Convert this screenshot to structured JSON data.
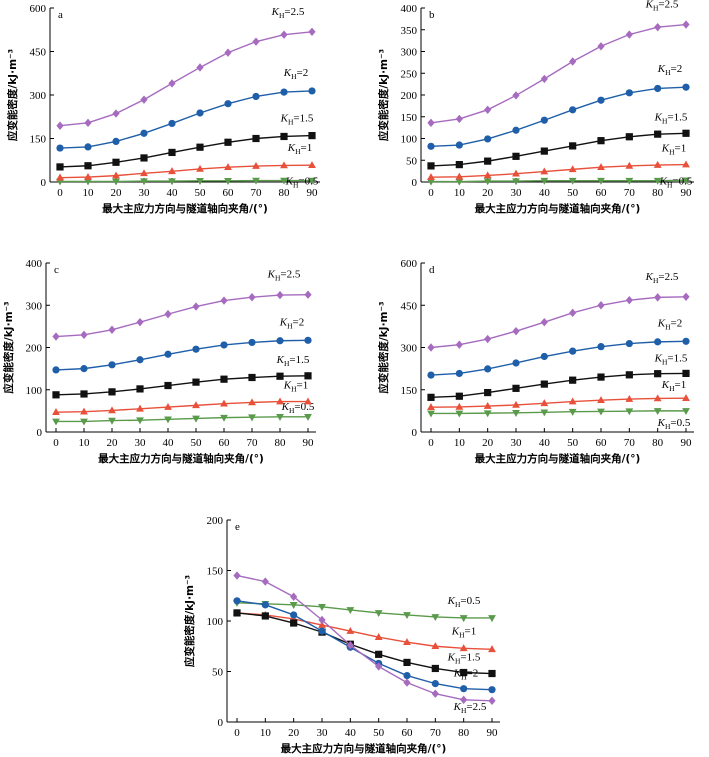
{
  "chart_data": [
    {
      "type": "line",
      "panel_label": "a",
      "xlabel": "最大主应力方向与隧道轴向夹角/(°)",
      "ylabel": "应变能密度/kJ·m⁻³",
      "x": [
        0,
        10,
        20,
        30,
        40,
        50,
        60,
        70,
        80,
        90
      ],
      "ylim": [
        0,
        600
      ],
      "yticks": [
        0,
        150,
        300,
        450,
        600
      ],
      "series": [
        {
          "name": "KH=0.5",
          "label": {
            "k": "K",
            "sub": "H",
            "val": "=0.5"
          },
          "color": "#5a9a4b",
          "marker": "triangle-down",
          "values": [
            2,
            2,
            2,
            3,
            3,
            4,
            4,
            5,
            5,
            5
          ]
        },
        {
          "name": "KH=1",
          "label": {
            "k": "K",
            "sub": "H",
            "val": "=1"
          },
          "color": "#e8503a",
          "marker": "triangle-up",
          "values": [
            15,
            17,
            22,
            30,
            37,
            45,
            51,
            55,
            57,
            58
          ]
        },
        {
          "name": "KH=1.5",
          "label": {
            "k": "K",
            "sub": "H",
            "val": "=1.5"
          },
          "color": "#111111",
          "marker": "square",
          "values": [
            52,
            56,
            68,
            83,
            102,
            120,
            137,
            150,
            157,
            160
          ]
        },
        {
          "name": "KH=2",
          "label": {
            "k": "K",
            "sub": "H",
            "val": "=2"
          },
          "color": "#1f5ea8",
          "marker": "circle",
          "values": [
            117,
            121,
            140,
            168,
            202,
            238,
            270,
            295,
            310,
            314
          ]
        },
        {
          "name": "KH=2.5",
          "label": {
            "k": "K",
            "sub": "H",
            "val": "=2.5"
          },
          "color": "#a66bbf",
          "marker": "diamond",
          "values": [
            194,
            204,
            236,
            284,
            340,
            395,
            446,
            484,
            508,
            518
          ]
        }
      ]
    },
    {
      "type": "line",
      "panel_label": "b",
      "xlabel": "最大主应力方向与隧道轴向夹角/(°)",
      "ylabel": "应变能密度/kJ·m⁻³",
      "x": [
        0,
        10,
        20,
        30,
        40,
        50,
        60,
        70,
        80,
        90
      ],
      "ylim": [
        0,
        400
      ],
      "yticks": [
        0,
        50,
        100,
        150,
        200,
        250,
        300,
        350,
        400
      ],
      "series": [
        {
          "name": "KH=0.5",
          "label": {
            "k": "K",
            "sub": "H",
            "val": "=0.5"
          },
          "color": "#5a9a4b",
          "marker": "triangle-down",
          "values": [
            1,
            1,
            2,
            2,
            3,
            3,
            3,
            3,
            3,
            4
          ]
        },
        {
          "name": "KH=1",
          "label": {
            "k": "K",
            "sub": "H",
            "val": "=1"
          },
          "color": "#e8503a",
          "marker": "triangle-up",
          "values": [
            11,
            12,
            15,
            19,
            24,
            29,
            34,
            37,
            39,
            40
          ]
        },
        {
          "name": "KH=1.5",
          "label": {
            "k": "K",
            "sub": "H",
            "val": "=1.5"
          },
          "color": "#111111",
          "marker": "square",
          "values": [
            37,
            40,
            48,
            59,
            71,
            83,
            95,
            104,
            110,
            112
          ]
        },
        {
          "name": "KH=2",
          "label": {
            "k": "K",
            "sub": "H",
            "val": "=2"
          },
          "color": "#1f5ea8",
          "marker": "circle",
          "values": [
            82,
            85,
            99,
            119,
            142,
            166,
            188,
            205,
            215,
            218
          ]
        },
        {
          "name": "KH=2.5",
          "label": {
            "k": "K",
            "sub": "H",
            "val": "=2.5"
          },
          "color": "#a66bbf",
          "marker": "diamond",
          "values": [
            136,
            145,
            166,
            199,
            237,
            277,
            312,
            339,
            356,
            362
          ]
        }
      ]
    },
    {
      "type": "line",
      "panel_label": "c",
      "xlabel": "最大主应力方向与隧道轴向夹角/(°)",
      "ylabel": "应变能密度/kJ·m⁻³",
      "x": [
        0,
        10,
        20,
        30,
        40,
        50,
        60,
        70,
        80,
        90
      ],
      "ylim": [
        0,
        400
      ],
      "yticks": [
        0,
        100,
        200,
        300,
        400
      ],
      "series": [
        {
          "name": "KH=0.5",
          "label": {
            "k": "K",
            "sub": "H",
            "val": "=0.5"
          },
          "color": "#5a9a4b",
          "marker": "triangle-down",
          "values": [
            25,
            25,
            27,
            28,
            30,
            32,
            34,
            35,
            36,
            36
          ]
        },
        {
          "name": "KH=1",
          "label": {
            "k": "K",
            "sub": "H",
            "val": "=1"
          },
          "color": "#e8503a",
          "marker": "triangle-up",
          "values": [
            47,
            48,
            51,
            55,
            59,
            63,
            67,
            70,
            72,
            72
          ]
        },
        {
          "name": "KH=1.5",
          "label": {
            "k": "K",
            "sub": "H",
            "val": "=1.5"
          },
          "color": "#111111",
          "marker": "square",
          "values": [
            88,
            90,
            95,
            102,
            110,
            118,
            125,
            129,
            132,
            133
          ]
        },
        {
          "name": "KH=2",
          "label": {
            "k": "K",
            "sub": "H",
            "val": "=2"
          },
          "color": "#1f5ea8",
          "marker": "circle",
          "values": [
            147,
            150,
            159,
            171,
            184,
            196,
            206,
            212,
            216,
            217
          ]
        },
        {
          "name": "KH=2.5",
          "label": {
            "k": "K",
            "sub": "H",
            "val": "=2.5"
          },
          "color": "#a66bbf",
          "marker": "diamond",
          "values": [
            226,
            230,
            242,
            260,
            279,
            297,
            311,
            319,
            324,
            325
          ]
        }
      ]
    },
    {
      "type": "line",
      "panel_label": "d",
      "xlabel": "最大主应力方向与隧道轴向夹角/(°)",
      "ylabel": "应变能密度/kJ·m⁻³",
      "x": [
        0,
        10,
        20,
        30,
        40,
        50,
        60,
        70,
        80,
        90
      ],
      "ylim": [
        0,
        600
      ],
      "yticks": [
        0,
        150,
        300,
        450,
        600
      ],
      "series": [
        {
          "name": "KH=0.5",
          "label": {
            "k": "K",
            "sub": "H",
            "val": "=0.5"
          },
          "color": "#5a9a4b",
          "marker": "triangle-down",
          "values": [
            66,
            66,
            67,
            68,
            70,
            72,
            73,
            74,
            75,
            75
          ]
        },
        {
          "name": "KH=1",
          "label": {
            "k": "K",
            "sub": "H",
            "val": "=1"
          },
          "color": "#e8503a",
          "marker": "triangle-up",
          "values": [
            88,
            89,
            92,
            96,
            102,
            108,
            113,
            117,
            119,
            120
          ]
        },
        {
          "name": "KH=1.5",
          "label": {
            "k": "K",
            "sub": "H",
            "val": "=1.5"
          },
          "color": "#111111",
          "marker": "square",
          "values": [
            123,
            127,
            140,
            155,
            170,
            184,
            195,
            203,
            207,
            208
          ]
        },
        {
          "name": "KH=2",
          "label": {
            "k": "K",
            "sub": "H",
            "val": "=2"
          },
          "color": "#1f5ea8",
          "marker": "circle",
          "values": [
            202,
            208,
            224,
            245,
            268,
            287,
            303,
            314,
            320,
            322
          ]
        },
        {
          "name": "KH=2.5",
          "label": {
            "k": "K",
            "sub": "H",
            "val": "=2.5"
          },
          "color": "#a66bbf",
          "marker": "diamond",
          "values": [
            300,
            310,
            330,
            358,
            390,
            423,
            450,
            468,
            478,
            480
          ]
        }
      ]
    },
    {
      "type": "line",
      "panel_label": "e",
      "xlabel": "最大主应力方向与隧道轴向夹角/(°)",
      "ylabel": "应变能密度/kJ·m⁻³",
      "x": [
        0,
        10,
        20,
        30,
        40,
        50,
        60,
        70,
        80,
        90
      ],
      "ylim": [
        0,
        200
      ],
      "yticks": [
        0,
        50,
        100,
        150,
        200
      ],
      "series": [
        {
          "name": "KH=0.5",
          "label": {
            "k": "K",
            "sub": "H",
            "val": "=0.5"
          },
          "color": "#5a9a4b",
          "marker": "triangle-down",
          "values": [
            118,
            117,
            116,
            114,
            111,
            108,
            106,
            104,
            103,
            103
          ]
        },
        {
          "name": "KH=1",
          "label": {
            "k": "K",
            "sub": "H",
            "val": "=1"
          },
          "color": "#e8503a",
          "marker": "triangle-up",
          "values": [
            108,
            106,
            102,
            96,
            90,
            84,
            79,
            75,
            73,
            72
          ]
        },
        {
          "name": "KH=1.5",
          "label": {
            "k": "K",
            "sub": "H",
            "val": "=1.5"
          },
          "color": "#111111",
          "marker": "square",
          "values": [
            108,
            105,
            98,
            89,
            77,
            67,
            59,
            53,
            49,
            48
          ]
        },
        {
          "name": "KH=2",
          "label": {
            "k": "K",
            "sub": "H",
            "val": "=2"
          },
          "color": "#1f5ea8",
          "marker": "circle",
          "values": [
            120,
            116,
            106,
            90,
            74,
            58,
            46,
            38,
            33,
            32
          ]
        },
        {
          "name": "KH=2.5",
          "label": {
            "k": "K",
            "sub": "H",
            "val": "=2.5"
          },
          "color": "#a66bbf",
          "marker": "diamond",
          "values": [
            145,
            139,
            124,
            101,
            76,
            55,
            39,
            28,
            22,
            21
          ]
        }
      ]
    }
  ]
}
